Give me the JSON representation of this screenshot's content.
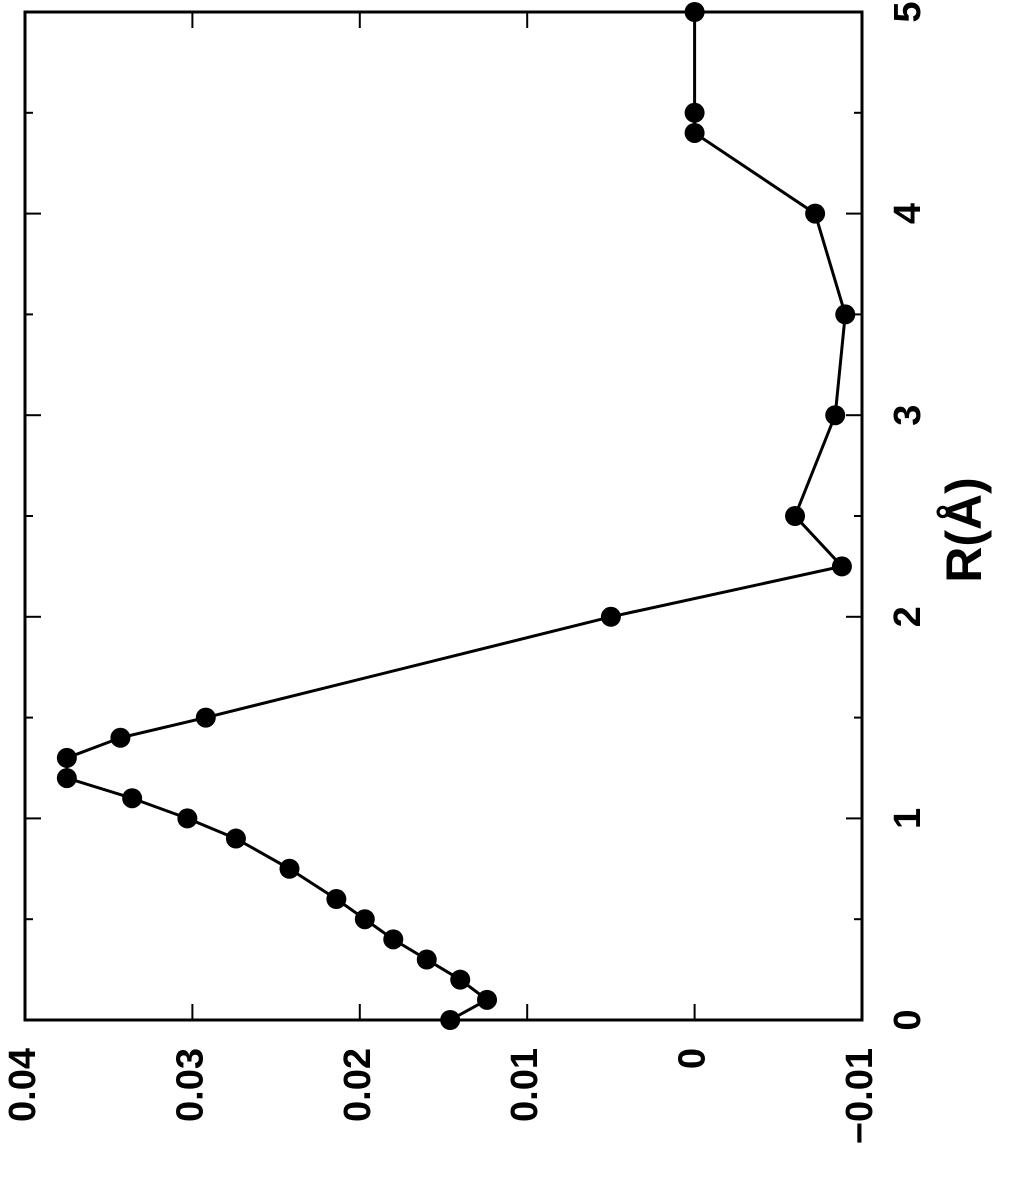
{
  "chart_data": {
    "type": "line",
    "x_label": "R(Å)",
    "x": [
      0,
      0.1,
      0.2,
      0.3,
      0.4,
      0.5,
      0.6,
      0.75,
      0.9,
      1.0,
      1.1,
      1.2,
      1.3,
      1.4,
      1.5,
      2.0,
      2.25,
      2.5,
      3.0,
      3.5,
      4.0,
      4.4,
      4.5,
      5.0
    ],
    "series": [
      {
        "color": "#000000",
        "values": [
          0.0146,
          0.0124,
          0.014,
          0.016,
          0.018,
          0.0197,
          0.0214,
          0.0242,
          0.0274,
          0.0303,
          0.0336,
          0.0375,
          0.0375,
          0.0343,
          0.0292,
          0.005,
          -0.0088,
          -0.006,
          -0.0084,
          -0.009,
          -0.0072,
          0,
          0,
          0
        ]
      }
    ],
    "xlim": [
      0,
      5
    ],
    "xticks": [
      0,
      1,
      2,
      3,
      4,
      5
    ],
    "xminorticks": [
      0.5,
      1.5,
      2.5,
      3.5,
      4.5
    ],
    "ylim": [
      -0.01,
      0.04
    ],
    "yticks": [
      0.04,
      0.03,
      0.02,
      0.01,
      0,
      {
        "value": -0.01,
        "label": "−0.01"
      }
    ]
  }
}
